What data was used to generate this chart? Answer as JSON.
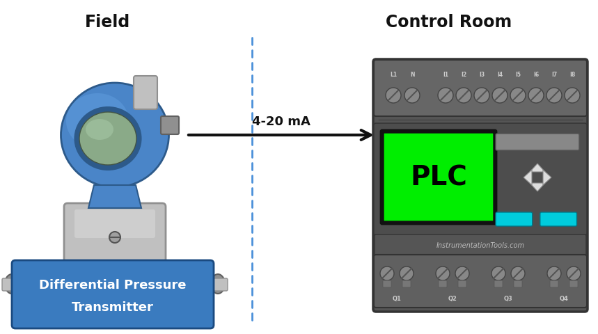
{
  "bg_color": "#ffffff",
  "title_field": "Field",
  "title_control_room": "Control Room",
  "signal_label": "4-20 mA",
  "plc_label": "PLC",
  "watermark": "InstrumentationTools.com",
  "label_box_color": "#3a7bbf",
  "label_text_color": "#ffffff",
  "label_line1": "Differential Pressure",
  "label_line2": "Transmitter",
  "plc_body_color": "#555555",
  "plc_top_strip_color": "#666666",
  "plc_mid_color": "#4d4d4d",
  "plc_bot_strip_color": "#606060",
  "plc_screen_color": "#00ee00",
  "plc_screen_border": "#111111",
  "plc_screen_text_color": "#000000",
  "plc_btn_color": "#00ccdd",
  "plc_arrow_color": "#dddddd",
  "plc_screw_color": "#888888",
  "plc_screw_slash": "#555555",
  "plc_watermark_color": "#bbbbbb",
  "dashed_line_color": "#4a90d9",
  "arrow_color": "#111111",
  "blue_body": "#4a85c8",
  "blue_dark": "#2d5a8a",
  "blue_mid": "#5a95d8",
  "blue_light": "#6aaae8",
  "silver": "#c0c0c0",
  "silver_dark": "#909090",
  "silver_light": "#d8d8d8"
}
